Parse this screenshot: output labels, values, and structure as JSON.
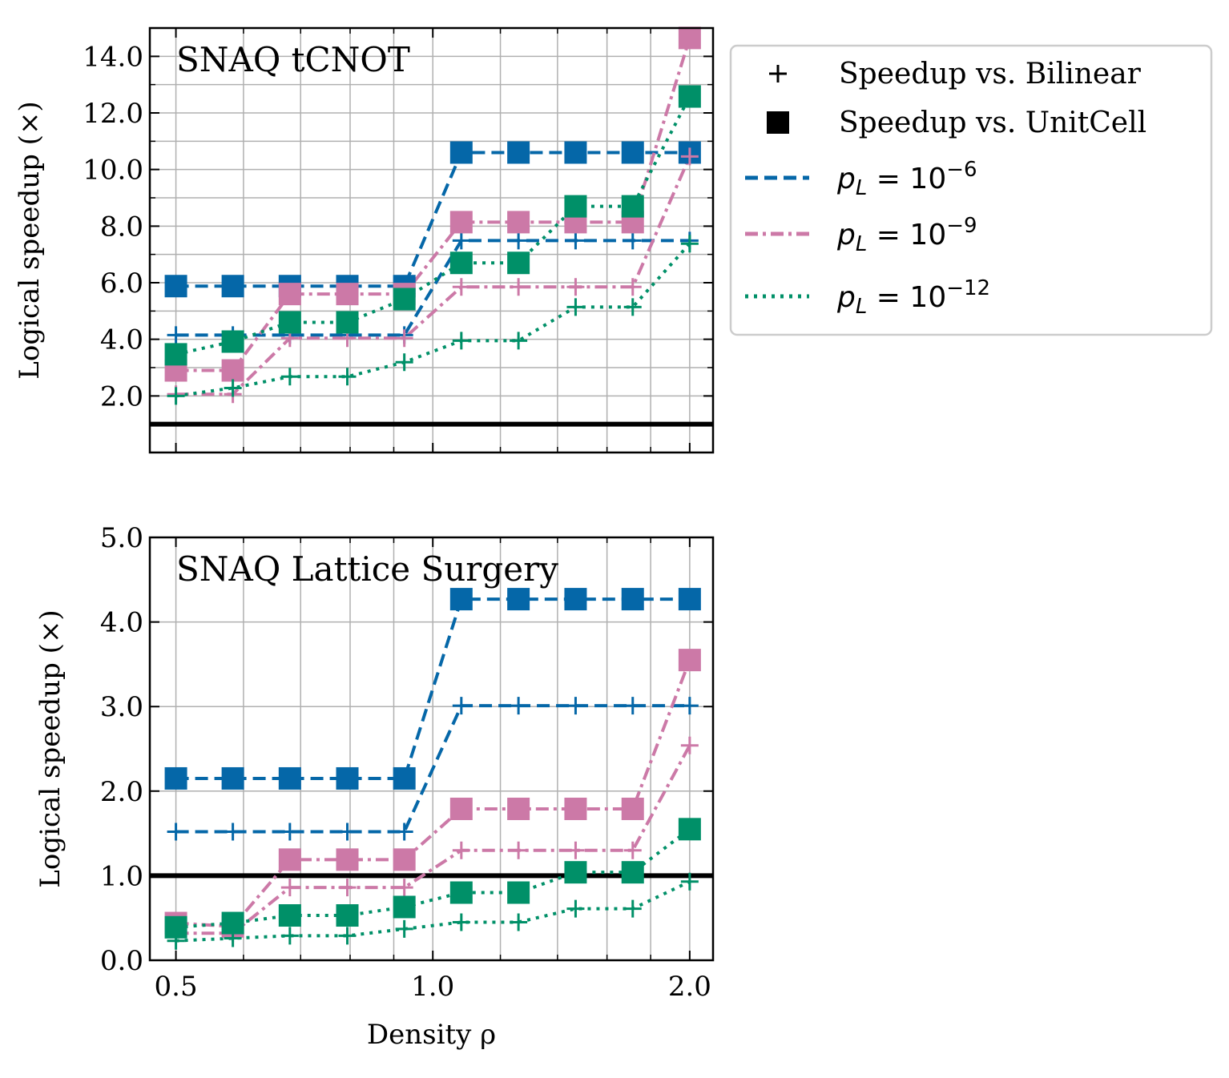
{
  "chart_data": [
    {
      "type": "line",
      "title": "SNAQ tCNOT",
      "ylabel": "Logical speedup (×)",
      "xscale": "log",
      "grid": true,
      "x": [
        0.5,
        0.583,
        0.68,
        0.794,
        0.926,
        1.08,
        1.26,
        1.47,
        1.715,
        2.0
      ],
      "xlim": [
        0.466,
        2.13
      ],
      "xticks": [
        0.5,
        {
          "value": 1,
          "label": "1.0"
        },
        {
          "value": 2,
          "label": "2.0"
        }
      ],
      "xminorticks": [
        0.6,
        0.7,
        0.8,
        0.9,
        1.2,
        1.4,
        1.6,
        1.8
      ],
      "ylim": [
        0,
        15
      ],
      "yticks": [
        {
          "value": 2,
          "label": "2.0"
        },
        {
          "value": 4,
          "label": "4.0"
        },
        {
          "value": 6,
          "label": "6.0"
        },
        {
          "value": 8,
          "label": "8.0"
        },
        {
          "value": 10,
          "label": "10.0"
        },
        {
          "value": 12,
          "label": "12.0"
        },
        {
          "value": 14,
          "label": "14.0"
        }
      ],
      "yminorticks": [
        1,
        3,
        5,
        7,
        9,
        11,
        13
      ],
      "reference_line": 1,
      "series": [
        {
          "marker": "square",
          "linestyle": "dashed",
          "color": "#0567a8",
          "values": [
            5.88,
            5.88,
            5.88,
            5.88,
            5.88,
            10.6,
            10.6,
            10.6,
            10.6,
            10.6
          ]
        },
        {
          "marker": "plus",
          "linestyle": "dashed",
          "color": "#0567a8",
          "values": [
            4.15,
            4.15,
            4.15,
            4.15,
            4.15,
            7.49,
            7.49,
            7.49,
            7.49,
            7.49
          ]
        },
        {
          "marker": "square",
          "linestyle": "dashdot",
          "color": "#cc79a7",
          "values": [
            2.9,
            2.9,
            5.6,
            5.6,
            5.6,
            8.14,
            8.14,
            8.14,
            8.14,
            14.65
          ]
        },
        {
          "marker": "plus",
          "linestyle": "dashdot",
          "color": "#cc79a7",
          "values": [
            2.06,
            2.06,
            4.04,
            4.04,
            4.04,
            5.85,
            5.85,
            5.85,
            5.85,
            10.46
          ]
        },
        {
          "marker": "square",
          "linestyle": "dotted",
          "color": "#009068",
          "values": [
            3.47,
            3.92,
            4.6,
            4.6,
            5.42,
            6.7,
            6.7,
            8.7,
            8.7,
            12.58
          ]
        },
        {
          "marker": "plus",
          "linestyle": "dotted",
          "color": "#009068",
          "values": [
            2.0,
            2.28,
            2.68,
            2.68,
            3.19,
            3.95,
            3.95,
            5.14,
            5.14,
            7.38
          ]
        }
      ],
      "legend": {
        "location": "outside upper right",
        "entries": [
          {
            "marker": "plus",
            "color": "#000000",
            "label": "Speedup vs. Bilinear"
          },
          {
            "marker": "square",
            "color": "#000000",
            "label": "Speedup vs. UnitCell"
          },
          {
            "linestyle": "dashed",
            "color": "#0567a8",
            "label": {
              "var": "p",
              "sub": "L",
              "rest": " = 10",
              "sup": "−6"
            }
          },
          {
            "linestyle": "dashdot",
            "color": "#cc79a7",
            "label": {
              "var": "p",
              "sub": "L",
              "rest": " = 10",
              "sup": "−9"
            }
          },
          {
            "linestyle": "dotted",
            "color": "#009068",
            "label": {
              "var": "p",
              "sub": "L",
              "rest": " = 10",
              "sup": "−12"
            }
          }
        ]
      }
    },
    {
      "type": "line",
      "title": "SNAQ Lattice Surgery",
      "ylabel": "Logical speedup (×)",
      "xlabel": "Density ρ",
      "xscale": "log",
      "grid": true,
      "x": [
        0.5,
        0.583,
        0.68,
        0.794,
        0.926,
        1.08,
        1.26,
        1.47,
        1.715,
        2.0
      ],
      "xlim": [
        0.466,
        2.13
      ],
      "xticks": [
        0.5,
        {
          "value": 1,
          "label": "1.0"
        },
        {
          "value": 2,
          "label": "2.0"
        }
      ],
      "xminorticks": [
        0.6,
        0.7,
        0.8,
        0.9,
        1.2,
        1.4,
        1.6,
        1.8
      ],
      "ylim": [
        0,
        5
      ],
      "yticks": [
        {
          "value": 0,
          "label": "0.0"
        },
        {
          "value": 1,
          "label": "1.0"
        },
        {
          "value": 2,
          "label": "2.0"
        },
        {
          "value": 3,
          "label": "3.0"
        },
        {
          "value": 4,
          "label": "4.0"
        },
        {
          "value": 5,
          "label": "5.0"
        }
      ],
      "reference_line": 1,
      "series": [
        {
          "marker": "square",
          "linestyle": "dashed",
          "color": "#0567a8",
          "values": [
            2.15,
            2.15,
            2.15,
            2.15,
            2.15,
            4.27,
            4.27,
            4.27,
            4.27,
            4.27
          ]
        },
        {
          "marker": "plus",
          "linestyle": "dashed",
          "color": "#0567a8",
          "values": [
            1.52,
            1.52,
            1.52,
            1.52,
            1.52,
            3.01,
            3.01,
            3.01,
            3.01,
            3.01
          ]
        },
        {
          "marker": "square",
          "linestyle": "dashdot",
          "color": "#cc79a7",
          "values": [
            0.44,
            0.4,
            1.19,
            1.19,
            1.19,
            1.79,
            1.79,
            1.79,
            1.79,
            3.55
          ]
        },
        {
          "marker": "plus",
          "linestyle": "dashdot",
          "color": "#cc79a7",
          "values": [
            0.32,
            0.32,
            0.86,
            0.86,
            0.86,
            1.3,
            1.3,
            1.3,
            1.3,
            2.54
          ]
        },
        {
          "marker": "square",
          "linestyle": "dotted",
          "color": "#009068",
          "values": [
            0.39,
            0.44,
            0.53,
            0.53,
            0.63,
            0.8,
            0.8,
            1.04,
            1.04,
            1.55
          ]
        },
        {
          "marker": "plus",
          "linestyle": "dotted",
          "color": "#009068",
          "values": [
            0.23,
            0.26,
            0.29,
            0.29,
            0.37,
            0.45,
            0.45,
            0.61,
            0.61,
            0.93
          ]
        }
      ]
    }
  ]
}
